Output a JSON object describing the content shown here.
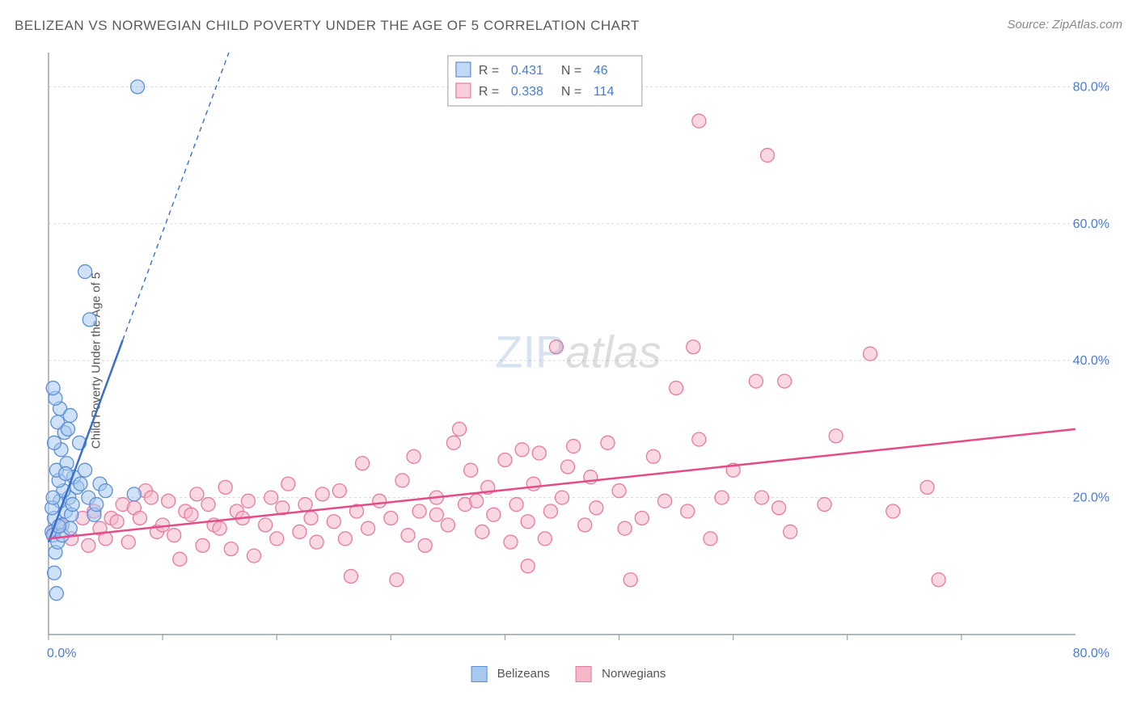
{
  "title": "BELIZEAN VS NORWEGIAN CHILD POVERTY UNDER THE AGE OF 5 CORRELATION CHART",
  "source": "Source: ZipAtlas.com",
  "watermark_zip": "ZIP",
  "watermark_atlas": "atlas",
  "y_axis_label": "Child Poverty Under the Age of 5",
  "chart": {
    "type": "scatter",
    "xlim": [
      0,
      90
    ],
    "ylim": [
      0,
      85
    ],
    "x_origin_label": "0.0%",
    "x_max_label": "80.0%",
    "y_tick_labels": [
      "20.0%",
      "40.0%",
      "60.0%",
      "80.0%"
    ],
    "y_tick_values": [
      20,
      40,
      60,
      80
    ],
    "x_tick_values": [
      0,
      10,
      20,
      30,
      40,
      50,
      60,
      70,
      80
    ],
    "background_color": "#ffffff",
    "axis_color": "#9aa0a6",
    "grid_color": "#d8d8d8",
    "tick_label_color": "#4a7bd0",
    "marker_radius": 8.5,
    "marker_stroke_width": 1.3,
    "trendline_width_solid": 2.5,
    "trendline_width_dashed": 1.4,
    "series": [
      {
        "name": "Belizeans",
        "fill_color": "#a8c8f0",
        "fill_opacity": 0.55,
        "stroke_color": "#5b8fd6",
        "trend_color": "#3a6fc7",
        "r_value": "0.431",
        "n_value": "46",
        "trend_solid": {
          "x1": 0,
          "y1": 13.5,
          "x2": 6.5,
          "y2": 43
        },
        "trend_dashed": {
          "x1": 6.5,
          "y1": 43,
          "x2": 15.8,
          "y2": 85
        },
        "points": [
          [
            0.3,
            15
          ],
          [
            0.4,
            14.5
          ],
          [
            0.6,
            12
          ],
          [
            0.8,
            13.5
          ],
          [
            0.5,
            17
          ],
          [
            1.2,
            16
          ],
          [
            1.5,
            18
          ],
          [
            1.0,
            19.5
          ],
          [
            2.0,
            17.5
          ],
          [
            1.8,
            20
          ],
          [
            1.3,
            21
          ],
          [
            0.9,
            22.5
          ],
          [
            2.5,
            21.5
          ],
          [
            2.2,
            23
          ],
          [
            0.7,
            24
          ],
          [
            1.6,
            25
          ],
          [
            1.1,
            27
          ],
          [
            0.5,
            28
          ],
          [
            1.4,
            29.5
          ],
          [
            0.8,
            31
          ],
          [
            1.7,
            30
          ],
          [
            2.8,
            22
          ],
          [
            1.0,
            33
          ],
          [
            0.6,
            34.5
          ],
          [
            1.9,
            32
          ],
          [
            0.4,
            36
          ],
          [
            2.1,
            19
          ],
          [
            3.5,
            20
          ],
          [
            4.0,
            17.5
          ],
          [
            4.5,
            22
          ],
          [
            0.5,
            9
          ],
          [
            0.7,
            6
          ],
          [
            3.2,
            24
          ],
          [
            2.7,
            28
          ],
          [
            1.2,
            14.5
          ],
          [
            1.9,
            15.5
          ],
          [
            0.3,
            18.5
          ],
          [
            5.0,
            21
          ],
          [
            4.2,
            19
          ],
          [
            7.5,
            20.5
          ],
          [
            3.6,
            46
          ],
          [
            3.2,
            53
          ],
          [
            7.8,
            80
          ],
          [
            0.9,
            15.8
          ],
          [
            1.5,
            23.5
          ],
          [
            0.4,
            20
          ]
        ]
      },
      {
        "name": "Norwegians",
        "fill_color": "#f6b8c9",
        "fill_opacity": 0.55,
        "stroke_color": "#e77aa0",
        "trend_color": "#e54b87",
        "r_value": "0.338",
        "n_value": "114",
        "trend_solid": {
          "x1": 0,
          "y1": 14,
          "x2": 90,
          "y2": 30
        },
        "points": [
          [
            0.5,
            15
          ],
          [
            1,
            16
          ],
          [
            2,
            14
          ],
          [
            3,
            17
          ],
          [
            3.5,
            13
          ],
          [
            4,
            18
          ],
          [
            4.5,
            15.5
          ],
          [
            5,
            14
          ],
          [
            5.5,
            17
          ],
          [
            6,
            16.5
          ],
          [
            6.5,
            19
          ],
          [
            7,
            13.5
          ],
          [
            7.5,
            18.5
          ],
          [
            8,
            17
          ],
          [
            8.5,
            21
          ],
          [
            9,
            20
          ],
          [
            9.5,
            15
          ],
          [
            10,
            16
          ],
          [
            10.5,
            19.5
          ],
          [
            11,
            14.5
          ],
          [
            11.5,
            11
          ],
          [
            12,
            18
          ],
          [
            12.5,
            17.5
          ],
          [
            13,
            20.5
          ],
          [
            13.5,
            13
          ],
          [
            14,
            19
          ],
          [
            14.5,
            16
          ],
          [
            15,
            15.5
          ],
          [
            15.5,
            21.5
          ],
          [
            16,
            12.5
          ],
          [
            16.5,
            18
          ],
          [
            17,
            17
          ],
          [
            17.5,
            19.5
          ],
          [
            18,
            11.5
          ],
          [
            19,
            16
          ],
          [
            19.5,
            20
          ],
          [
            20,
            14
          ],
          [
            20.5,
            18.5
          ],
          [
            21,
            22
          ],
          [
            22,
            15
          ],
          [
            22.5,
            19
          ],
          [
            23,
            17
          ],
          [
            23.5,
            13.5
          ],
          [
            24,
            20.5
          ],
          [
            25,
            16.5
          ],
          [
            25.5,
            21
          ],
          [
            26,
            14
          ],
          [
            26.5,
            8.5
          ],
          [
            27,
            18
          ],
          [
            27.5,
            25
          ],
          [
            28,
            15.5
          ],
          [
            29,
            19.5
          ],
          [
            30,
            17
          ],
          [
            30.5,
            8
          ],
          [
            31,
            22.5
          ],
          [
            31.5,
            14.5
          ],
          [
            32,
            26
          ],
          [
            32.5,
            18
          ],
          [
            33,
            13
          ],
          [
            34,
            20
          ],
          [
            35,
            16
          ],
          [
            35.5,
            28
          ],
          [
            36,
            30
          ],
          [
            36.5,
            19
          ],
          [
            37,
            24
          ],
          [
            38,
            15
          ],
          [
            38.5,
            21.5
          ],
          [
            39,
            17.5
          ],
          [
            40,
            25.5
          ],
          [
            40.5,
            13.5
          ],
          [
            41,
            19
          ],
          [
            41.5,
            27
          ],
          [
            42,
            16.5
          ],
          [
            42.5,
            22
          ],
          [
            43,
            26.5
          ],
          [
            43.5,
            14
          ],
          [
            44,
            18
          ],
          [
            44.5,
            42
          ],
          [
            45,
            20
          ],
          [
            45.5,
            24.5
          ],
          [
            46,
            27.5
          ],
          [
            47,
            16
          ],
          [
            47.5,
            23
          ],
          [
            48,
            18.5
          ],
          [
            49,
            28
          ],
          [
            50,
            21
          ],
          [
            50.5,
            15.5
          ],
          [
            51,
            8
          ],
          [
            52,
            17
          ],
          [
            53,
            26
          ],
          [
            54,
            19.5
          ],
          [
            55,
            36
          ],
          [
            56,
            18
          ],
          [
            56.5,
            42
          ],
          [
            57,
            28.5
          ],
          [
            58,
            14
          ],
          [
            59,
            20
          ],
          [
            60,
            24
          ],
          [
            62,
            37
          ],
          [
            62.5,
            20
          ],
          [
            64,
            18.5
          ],
          [
            64.5,
            37
          ],
          [
            65,
            15
          ],
          [
            68,
            19
          ],
          [
            69,
            29
          ],
          [
            72,
            41
          ],
          [
            74,
            18
          ],
          [
            77,
            21.5
          ],
          [
            78,
            8
          ],
          [
            57,
            75
          ],
          [
            63,
            70
          ],
          [
            34,
            17.5
          ],
          [
            42,
            10
          ],
          [
            37.5,
            19.5
          ]
        ]
      }
    ]
  },
  "top_legend": {
    "r_label": "R",
    "n_label": "N",
    "equals": "="
  },
  "bottom_legend": {
    "label1": "Belizeans",
    "label2": "Norwegians"
  }
}
